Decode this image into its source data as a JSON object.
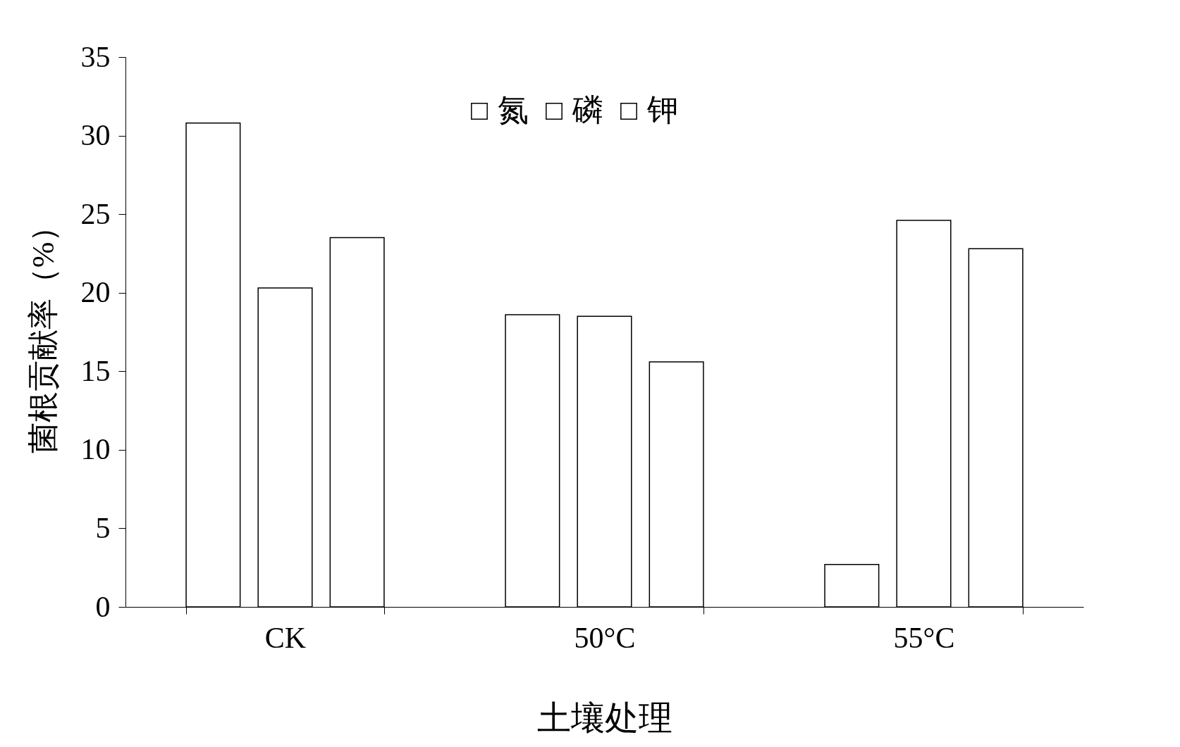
{
  "chart_data": {
    "type": "bar",
    "xlabel": "土壤处理",
    "ylabel": "菌根贡献率（%）",
    "categories": [
      "CK",
      "50°C",
      "55°C"
    ],
    "series": [
      {
        "name": "氮",
        "color": "#ffffff",
        "values": [
          30.8,
          18.6,
          2.7
        ]
      },
      {
        "name": "磷",
        "color": "#ffffff",
        "values": [
          20.3,
          18.5,
          24.6
        ]
      },
      {
        "name": "钾",
        "color": "#ffffff",
        "values": [
          23.5,
          15.6,
          22.8
        ]
      }
    ],
    "ylim": [
      0,
      35
    ],
    "yticks": [
      0,
      5,
      10,
      15,
      20,
      25,
      30,
      35
    ],
    "grid": false,
    "legend": "top"
  }
}
